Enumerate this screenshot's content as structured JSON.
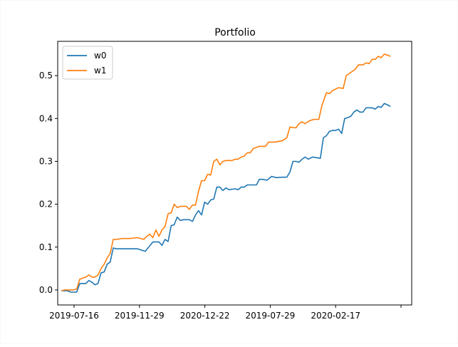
{
  "chart_data": {
    "type": "line",
    "title": "Portfolio",
    "xlabel": "",
    "ylabel": "",
    "x_tick_labels": [
      "2019-07-16",
      "2019-11-29",
      "2020-12-22",
      "2019-07-29",
      "2020-02-17",
      ""
    ],
    "y_ticks": [
      0.0,
      0.1,
      0.2,
      0.3,
      0.4,
      0.5
    ],
    "y_tick_labels": [
      "0.0",
      "0.1",
      "0.2",
      "0.3",
      "0.4",
      "0.5"
    ],
    "x_range": [
      -5,
      460
    ],
    "ylim": [
      -0.035,
      0.58
    ],
    "grid": false,
    "legend": "upper-left",
    "series": [
      {
        "name": "w0",
        "color": "#1f77b4",
        "points": [
          [
            0,
            -0.002
          ],
          [
            4,
            -0.002
          ],
          [
            8,
            -0.002
          ],
          [
            12,
            -0.005
          ],
          [
            16,
            -0.005
          ],
          [
            20,
            -0.005
          ],
          [
            24,
            0.015
          ],
          [
            28,
            0.015
          ],
          [
            32,
            0.015
          ],
          [
            36,
            0.022
          ],
          [
            40,
            0.018
          ],
          [
            44,
            0.012
          ],
          [
            48,
            0.015
          ],
          [
            52,
            0.04
          ],
          [
            56,
            0.042
          ],
          [
            60,
            0.06
          ],
          [
            64,
            0.065
          ],
          [
            68,
            0.098
          ],
          [
            72,
            0.096
          ],
          [
            80,
            0.096
          ],
          [
            90,
            0.096
          ],
          [
            100,
            0.096
          ],
          [
            110,
            0.09
          ],
          [
            120,
            0.112
          ],
          [
            124,
            0.112
          ],
          [
            128,
            0.112
          ],
          [
            132,
            0.104
          ],
          [
            136,
            0.118
          ],
          [
            140,
            0.113
          ],
          [
            144,
            0.15
          ],
          [
            148,
            0.152
          ],
          [
            152,
            0.17
          ],
          [
            156,
            0.162
          ],
          [
            160,
            0.164
          ],
          [
            168,
            0.164
          ],
          [
            172,
            0.16
          ],
          [
            176,
            0.175
          ],
          [
            180,
            0.185
          ],
          [
            184,
            0.175
          ],
          [
            188,
            0.205
          ],
          [
            192,
            0.2
          ],
          [
            196,
            0.21
          ],
          [
            200,
            0.212
          ],
          [
            204,
            0.24
          ],
          [
            208,
            0.24
          ],
          [
            212,
            0.232
          ],
          [
            216,
            0.238
          ],
          [
            220,
            0.234
          ],
          [
            228,
            0.236
          ],
          [
            232,
            0.234
          ],
          [
            236,
            0.24
          ],
          [
            240,
            0.24
          ],
          [
            244,
            0.245
          ],
          [
            248,
            0.245
          ],
          [
            256,
            0.245
          ],
          [
            260,
            0.258
          ],
          [
            264,
            0.258
          ],
          [
            270,
            0.256
          ],
          [
            276,
            0.265
          ],
          [
            282,
            0.262
          ],
          [
            290,
            0.263
          ],
          [
            296,
            0.263
          ],
          [
            300,
            0.275
          ],
          [
            304,
            0.3
          ],
          [
            308,
            0.3
          ],
          [
            312,
            0.298
          ],
          [
            316,
            0.305
          ],
          [
            320,
            0.31
          ],
          [
            324,
            0.305
          ],
          [
            330,
            0.31
          ],
          [
            340,
            0.307
          ],
          [
            344,
            0.355
          ],
          [
            348,
            0.36
          ],
          [
            352,
            0.37
          ],
          [
            356,
            0.372
          ],
          [
            360,
            0.372
          ],
          [
            364,
            0.375
          ],
          [
            368,
            0.365
          ],
          [
            372,
            0.4
          ],
          [
            376,
            0.402
          ],
          [
            380,
            0.405
          ],
          [
            384,
            0.415
          ],
          [
            388,
            0.42
          ],
          [
            392,
            0.415
          ],
          [
            396,
            0.415
          ],
          [
            400,
            0.425
          ],
          [
            408,
            0.425
          ],
          [
            412,
            0.422
          ],
          [
            416,
            0.428
          ],
          [
            420,
            0.426
          ],
          [
            424,
            0.435
          ],
          [
            428,
            0.432
          ],
          [
            432,
            0.428
          ]
        ]
      },
      {
        "name": "w1",
        "color": "#ff7f0e",
        "points": [
          [
            0,
            -0.002
          ],
          [
            4,
            0.0
          ],
          [
            8,
            0.0
          ],
          [
            12,
            0.0
          ],
          [
            16,
            0.0
          ],
          [
            20,
            0.002
          ],
          [
            24,
            0.025
          ],
          [
            28,
            0.028
          ],
          [
            32,
            0.03
          ],
          [
            36,
            0.035
          ],
          [
            40,
            0.03
          ],
          [
            44,
            0.03
          ],
          [
            48,
            0.035
          ],
          [
            52,
            0.05
          ],
          [
            56,
            0.06
          ],
          [
            60,
            0.075
          ],
          [
            64,
            0.085
          ],
          [
            68,
            0.118
          ],
          [
            72,
            0.118
          ],
          [
            80,
            0.12
          ],
          [
            90,
            0.12
          ],
          [
            100,
            0.122
          ],
          [
            108,
            0.118
          ],
          [
            112,
            0.125
          ],
          [
            116,
            0.13
          ],
          [
            120,
            0.122
          ],
          [
            124,
            0.14
          ],
          [
            128,
            0.125
          ],
          [
            132,
            0.14
          ],
          [
            136,
            0.148
          ],
          [
            140,
            0.178
          ],
          [
            144,
            0.18
          ],
          [
            148,
            0.2
          ],
          [
            152,
            0.192
          ],
          [
            156,
            0.195
          ],
          [
            164,
            0.195
          ],
          [
            168,
            0.188
          ],
          [
            172,
            0.198
          ],
          [
            176,
            0.198
          ],
          [
            180,
            0.23
          ],
          [
            184,
            0.255
          ],
          [
            188,
            0.255
          ],
          [
            192,
            0.27
          ],
          [
            196,
            0.268
          ],
          [
            200,
            0.3
          ],
          [
            204,
            0.305
          ],
          [
            208,
            0.292
          ],
          [
            212,
            0.3
          ],
          [
            216,
            0.302
          ],
          [
            224,
            0.302
          ],
          [
            228,
            0.305
          ],
          [
            232,
            0.305
          ],
          [
            236,
            0.31
          ],
          [
            240,
            0.312
          ],
          [
            244,
            0.32
          ],
          [
            248,
            0.32
          ],
          [
            252,
            0.33
          ],
          [
            260,
            0.335
          ],
          [
            268,
            0.335
          ],
          [
            272,
            0.345
          ],
          [
            280,
            0.345
          ],
          [
            290,
            0.348
          ],
          [
            296,
            0.355
          ],
          [
            300,
            0.38
          ],
          [
            308,
            0.378
          ],
          [
            312,
            0.388
          ],
          [
            316,
            0.392
          ],
          [
            320,
            0.388
          ],
          [
            326,
            0.395
          ],
          [
            332,
            0.398
          ],
          [
            338,
            0.398
          ],
          [
            342,
            0.43
          ],
          [
            348,
            0.46
          ],
          [
            352,
            0.458
          ],
          [
            356,
            0.465
          ],
          [
            364,
            0.472
          ],
          [
            370,
            0.47
          ],
          [
            374,
            0.5
          ],
          [
            378,
            0.505
          ],
          [
            382,
            0.51
          ],
          [
            386,
            0.515
          ],
          [
            390,
            0.525
          ],
          [
            396,
            0.525
          ],
          [
            400,
            0.53
          ],
          [
            404,
            0.528
          ],
          [
            408,
            0.538
          ],
          [
            412,
            0.538
          ],
          [
            416,
            0.545
          ],
          [
            420,
            0.542
          ],
          [
            424,
            0.55
          ],
          [
            428,
            0.548
          ],
          [
            432,
            0.545
          ]
        ]
      }
    ]
  }
}
